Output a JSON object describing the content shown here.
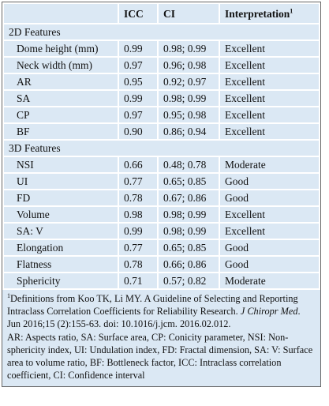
{
  "header": {
    "columns": [
      "ICC",
      "CI",
      "Interpretation"
    ],
    "marker": "1"
  },
  "sections": [
    {
      "title": "2D Features",
      "rows": [
        [
          "Dome height (mm)",
          "0.99",
          "0.98; 0.99",
          "Excellent"
        ],
        [
          "Neck width (mm)",
          "0.97",
          "0.96; 0.98",
          "Excellent"
        ],
        [
          "AR",
          "0.95",
          "0.92; 0.97",
          "Excellent"
        ],
        [
          "SA",
          "0.99",
          "0.98; 0.99",
          "Excellent"
        ],
        [
          "CP",
          "0.97",
          "0.95; 0.98",
          "Excellent"
        ],
        [
          "BF",
          "0.90",
          "0.86; 0.94",
          "Excellent"
        ]
      ]
    },
    {
      "title": "3D Features",
      "rows": [
        [
          "NSI",
          "0.66",
          "0.48; 0.78",
          "Moderate"
        ],
        [
          "UI",
          "0.77",
          "0.65; 0.85",
          "Good"
        ],
        [
          "FD",
          "0.78",
          "0.67; 0.86",
          "Good"
        ],
        [
          "Volume",
          "0.98",
          "0.98; 0.99",
          "Excellent"
        ],
        [
          "SA: V",
          "0.99",
          "0.98; 0.99",
          "Excellent"
        ],
        [
          "Elongation",
          "0.77",
          "0.65; 0.85",
          "Good"
        ],
        [
          "Flatness",
          "0.78",
          "0.66; 0.86",
          "Good"
        ],
        [
          "Sphericity",
          "0.71",
          "0.57; 0.82",
          "Moderate"
        ]
      ]
    }
  ],
  "footnote": {
    "marker": "1",
    "reference": [
      "Definitions from Koo TK, Li MY. A Guideline of Selecting and Reporting Intraclass Correlation Coefficients for Reliability Research. ",
      "J Chiropr Med",
      ". Jun 2016;15 (2):155-63. doi: 10.1016/j.jcm. 2016.02.012."
    ],
    "abbreviations": "AR: Aspects ratio, SA: Surface area, CP: Conicity parameter, NSI: Non-sphericity index, UI: Undulation index, FD: Fractal dimension, SA: V: Surface area to volume ratio, BF: Bottleneck factor, ICC: Intraclass correlation coefficient, CI: Confidence interval"
  }
}
